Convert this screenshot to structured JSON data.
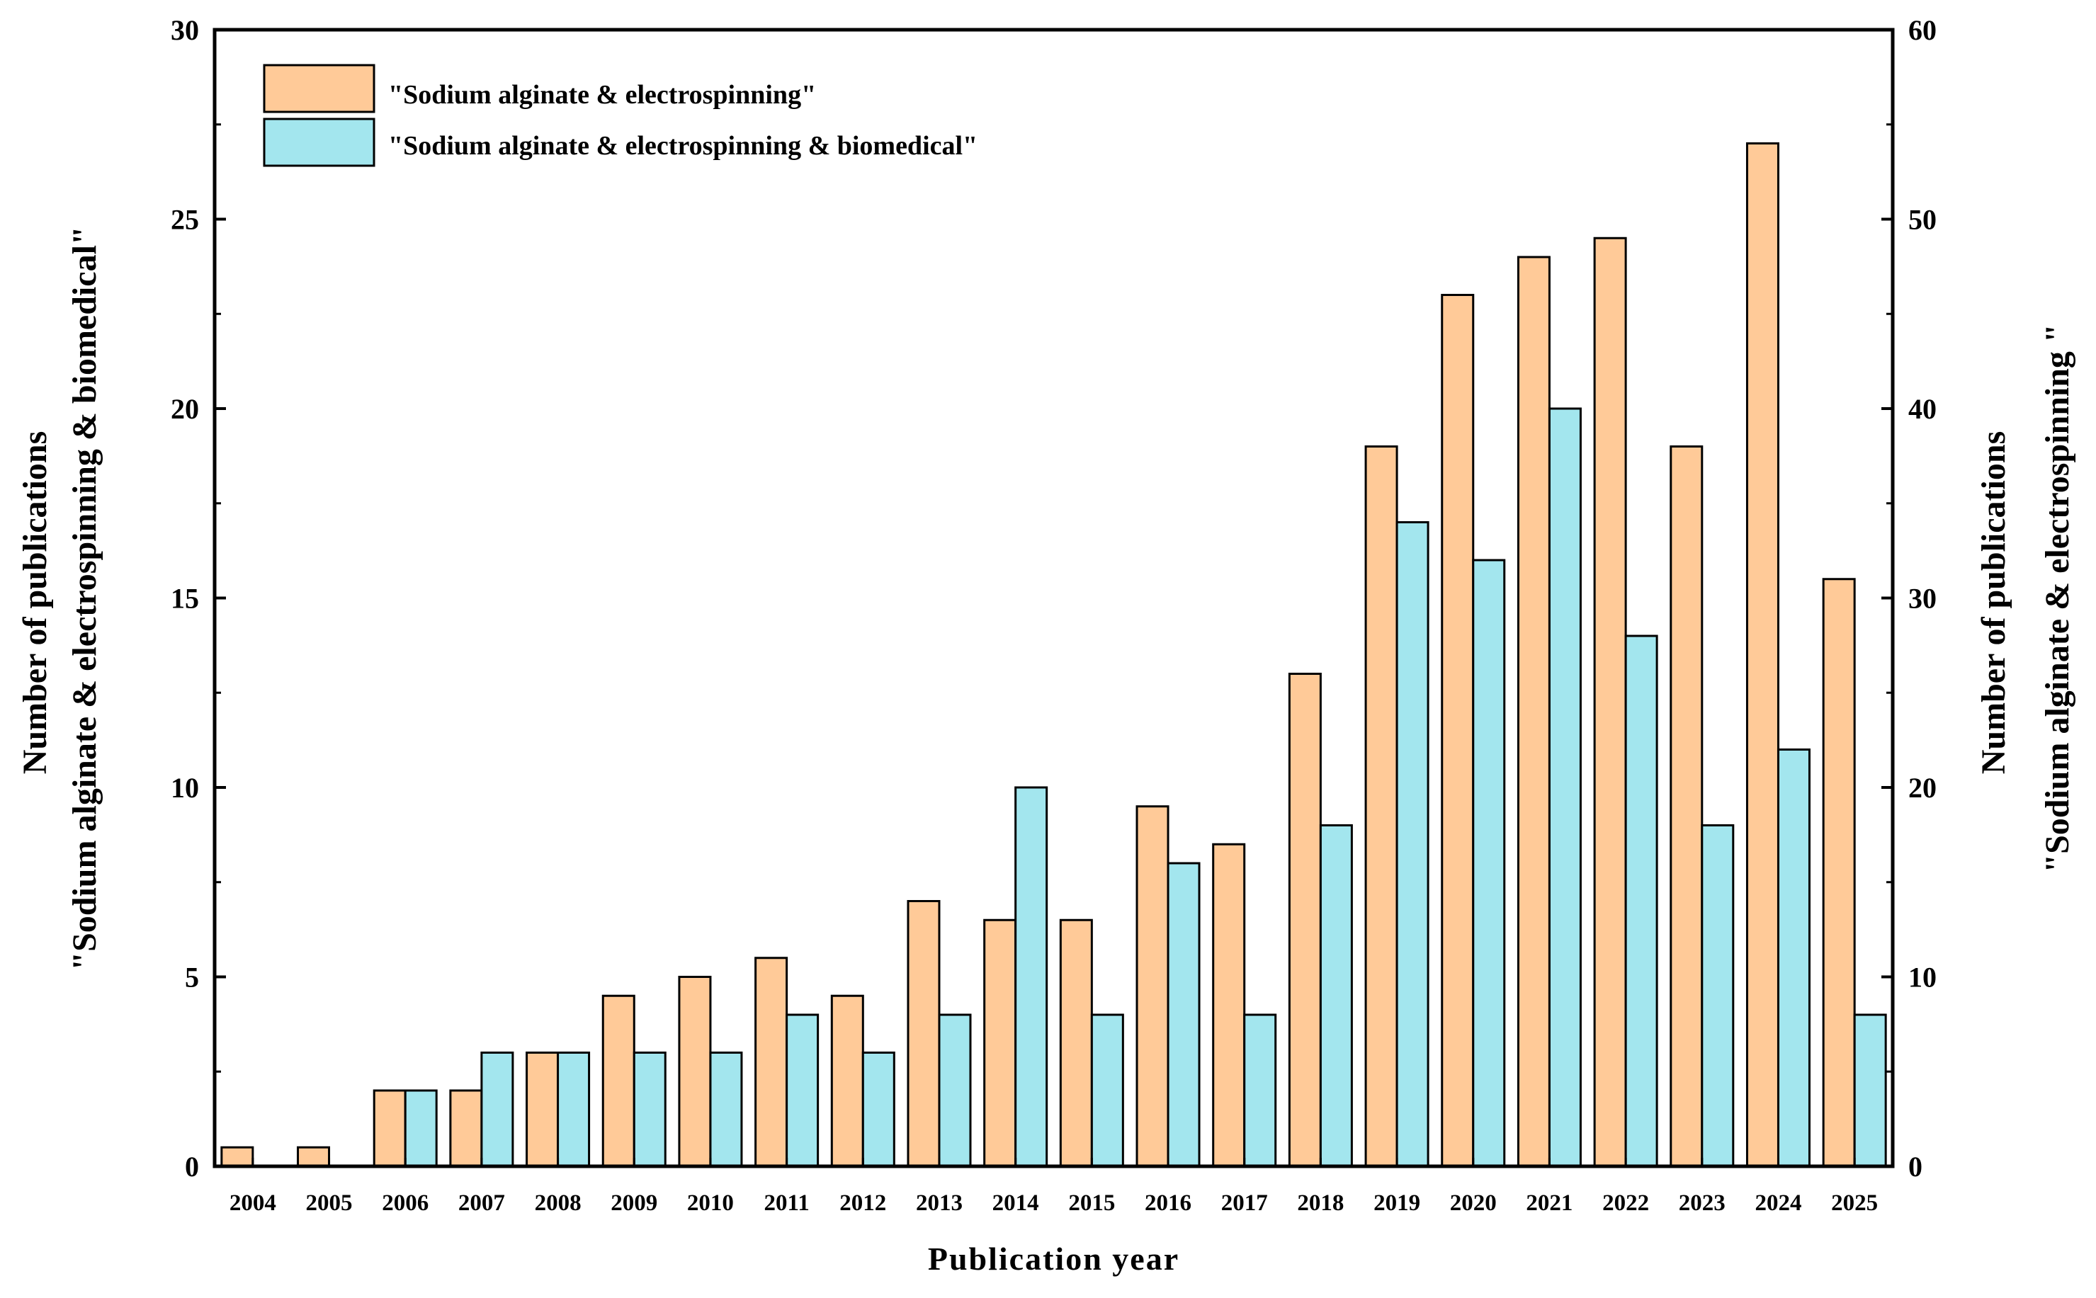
{
  "chart_data": {
    "type": "bar",
    "xlabel": "Publication year",
    "ylabel_left": [
      "Number of publications",
      "\"Sodium alginate & electrospinning & biomedical\""
    ],
    "ylabel_right": [
      "Number of publications",
      "\"Sodium alginate & electrospinning \""
    ],
    "ylim_left": [
      0,
      30
    ],
    "ylim_right": [
      0,
      60
    ],
    "yticks_left": [
      0,
      5,
      10,
      15,
      20,
      25,
      30
    ],
    "yticks_right": [
      0,
      10,
      20,
      30,
      40,
      50,
      60
    ],
    "categories": [
      "2004",
      "2005",
      "2006",
      "2007",
      "2008",
      "2009",
      "2010",
      "2011",
      "2012",
      "2013",
      "2014",
      "2015",
      "2016",
      "2017",
      "2018",
      "2019",
      "2020",
      "2021",
      "2022",
      "2023",
      "2024",
      "2025"
    ],
    "series": [
      {
        "name": "\"Sodium alginate & electrospinning\"",
        "axis": "right",
        "color": "#FFCA98",
        "values": [
          1,
          1,
          4,
          4,
          6,
          9,
          10,
          11,
          9,
          14,
          13,
          13,
          19,
          17,
          26,
          38,
          46,
          48,
          49,
          38,
          54,
          31
        ]
      },
      {
        "name": "\"Sodium alginate & electrospinning & biomedical\"",
        "axis": "left",
        "color": "#A3E6EE",
        "values": [
          0,
          0,
          2,
          3,
          3,
          3,
          3,
          4,
          3,
          4,
          10,
          4,
          8,
          4,
          9,
          17,
          16,
          20,
          14,
          9,
          11,
          4
        ]
      }
    ],
    "legend": "top-left",
    "grid": false
  }
}
